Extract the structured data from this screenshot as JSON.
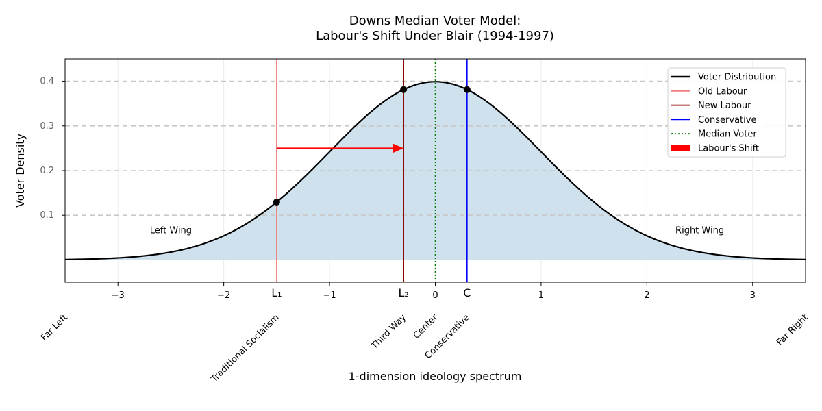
{
  "chart_data": {
    "type": "line",
    "title_line1": "Downs Median Voter Model:",
    "title_line2": "Labour's Shift Under Blair (1994-1997)",
    "xlabel": "1-dimension ideology spectrum",
    "ylabel": "Voter Density",
    "xlim": [
      -3.5,
      3.5
    ],
    "ylim": [
      -0.05,
      0.45
    ],
    "x_ticks": [
      {
        "v": -3,
        "label": "−3"
      },
      {
        "v": -2,
        "label": "−2"
      },
      {
        "v": -1,
        "label": "−1"
      },
      {
        "v": 0,
        "label": "0"
      },
      {
        "v": 1,
        "label": "1"
      },
      {
        "v": 2,
        "label": "2"
      },
      {
        "v": 3,
        "label": "3"
      }
    ],
    "y_ticks": [
      {
        "v": 0.1,
        "label": "0.1"
      },
      {
        "v": 0.2,
        "label": "0.2"
      },
      {
        "v": 0.3,
        "label": "0.3"
      },
      {
        "v": 0.4,
        "label": "0.4"
      }
    ],
    "grid": true,
    "distribution": {
      "name": "Voter Distribution",
      "mean": 0,
      "sd": 1,
      "color": "#000000",
      "fill": "#cfe1ed"
    },
    "positions": [
      {
        "key": "L1",
        "x": -1.5,
        "name": "Old Labour",
        "tick_label": "L₁",
        "color": "#f08080"
      },
      {
        "key": "L2",
        "x": -0.3,
        "name": "New Labour",
        "tick_label": "L₂",
        "color": "#8b0000"
      },
      {
        "key": "C",
        "x": 0.3,
        "name": "Conservative",
        "tick_label": "C",
        "color": "#0000ff"
      }
    ],
    "median": {
      "x": 0,
      "name": "Median Voter",
      "color": "#008000"
    },
    "points": [
      {
        "x": -1.5,
        "y": 0.1295
      },
      {
        "x": -0.3,
        "y": 0.3814
      },
      {
        "x": 0.3,
        "y": 0.3814
      }
    ],
    "shift": {
      "name": "Labour's Shift",
      "from_x": -1.5,
      "to_x": -0.3,
      "y": 0.25,
      "color": "#ff0000"
    },
    "region_labels": [
      {
        "text": "Left Wing",
        "x": -2.5,
        "y": 0.06
      },
      {
        "text": "Right Wing",
        "x": 2.5,
        "y": 0.06
      }
    ],
    "spectrum_labels": [
      {
        "text": "Far Left",
        "x": -3.5
      },
      {
        "text": "Traditional Socialism",
        "x": -1.5
      },
      {
        "text": "Third Way",
        "x": -0.3
      },
      {
        "text": "Center",
        "x": 0
      },
      {
        "text": "Conservative",
        "x": 0.3
      },
      {
        "text": "Far Right",
        "x": 3.5
      }
    ],
    "legend": {
      "placement": "top-right",
      "entries": [
        {
          "label": "Voter Distribution",
          "style": "line",
          "color": "#000000"
        },
        {
          "label": "Old Labour",
          "style": "line",
          "color": "#f08080"
        },
        {
          "label": "New Labour",
          "style": "line",
          "color": "#8b0000"
        },
        {
          "label": "Conservative",
          "style": "line",
          "color": "#0000ff"
        },
        {
          "label": "Median Voter",
          "style": "dotted",
          "color": "#008000"
        },
        {
          "label": "Labour's Shift",
          "style": "patch",
          "color": "#ff0000"
        }
      ]
    }
  }
}
